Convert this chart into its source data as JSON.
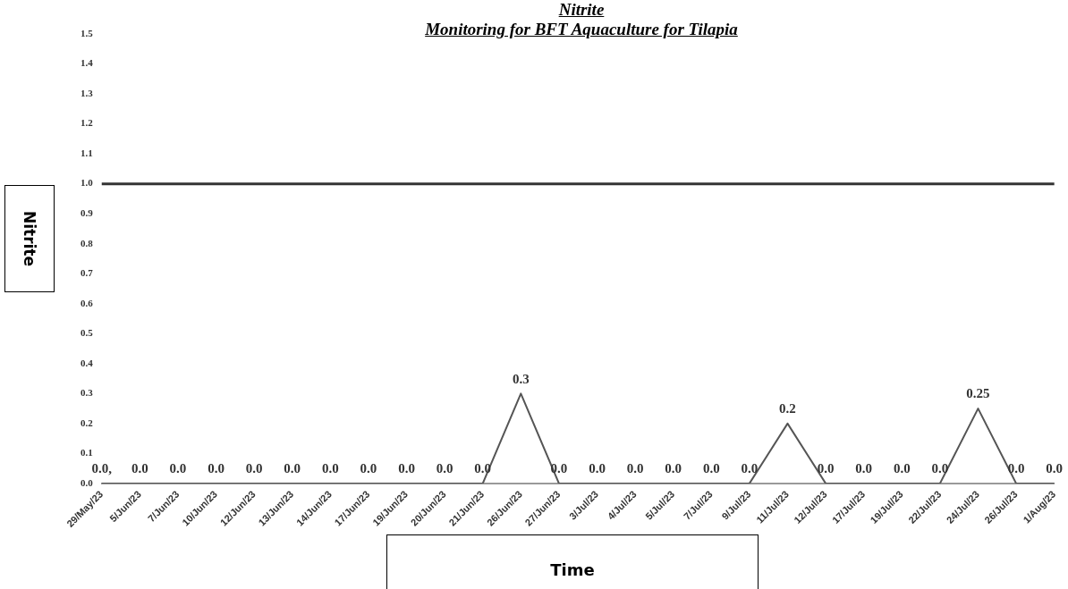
{
  "chart_data": {
    "type": "line",
    "title": "Nitrite",
    "subtitle": "Monitoring for BFT Aquaculture for Tilapia",
    "xlabel": "Time",
    "ylabel": "Nitrite",
    "categories": [
      "29/May/23",
      "5/Jun/23",
      "7/Jun/23",
      "10/Jun/23",
      "12/Jun/23",
      "13/Jun/23",
      "14/Jun/23",
      "17/Jun/23",
      "19/Jun/23",
      "20/Jun/23",
      "21/Jun/23",
      "26/Jun/23",
      "27/Jun/23",
      "3/Jul/23",
      "4/Jul/23",
      "5/Jul/23",
      "7/Jul/23",
      "9/Jul/23",
      "11/Jul/23",
      "12/Jul/23",
      "17/Jul/23",
      "19/Jul/23",
      "22/Jul/23",
      "24/Jul/23",
      "26/Jul/23",
      "1/Aug/23"
    ],
    "series": [
      {
        "color": "#555555",
        "values": [
          0,
          0,
          0,
          0,
          0,
          0,
          0,
          0,
          0,
          0,
          0,
          0.3,
          0,
          0,
          0,
          0,
          0,
          0,
          0.2,
          0,
          0,
          0,
          0,
          0.25,
          0,
          0
        ],
        "value_labels": [
          "0.0,",
          "0.0",
          "0.0",
          "0.0",
          "0.0",
          "0.0",
          "0.0",
          "0.0",
          "0.0",
          "0.0",
          "0.0",
          "0.3",
          "0.0",
          "0.0",
          "0.0",
          "0.0",
          "0.0",
          "0.0",
          "0.2",
          "0.0",
          "0.0",
          "0.0",
          "0.0",
          "0.25",
          "0.0",
          "0.0"
        ]
      }
    ],
    "ylim": [
      0,
      1.5
    ],
    "yticks": [
      {
        "value": 0,
        "label": "0.0"
      },
      {
        "value": 0.1,
        "label": "0.1"
      },
      {
        "value": 0.2,
        "label": "0.2"
      },
      {
        "value": 0.3,
        "label": "0.3"
      },
      {
        "value": 0.4,
        "label": "0.4"
      },
      {
        "value": 0.5,
        "label": "0.5"
      },
      {
        "value": 0.6,
        "label": "0.6"
      },
      {
        "value": 0.7,
        "label": "0.7"
      },
      {
        "value": 0.8,
        "label": "0.8"
      },
      {
        "value": 0.9,
        "label": "0.9"
      },
      {
        "value": 1,
        "label": "1.0"
      },
      {
        "value": 1.1,
        "label": "1.1"
      },
      {
        "value": 1.2,
        "label": "1.2"
      },
      {
        "value": 1.3,
        "label": "1.3"
      },
      {
        "value": 1.4,
        "label": "1.4"
      },
      {
        "value": 1.5,
        "label": "1.5"
      }
    ],
    "ref_lines": [
      {
        "axis": "y",
        "value": 1,
        "color": "#333333"
      }
    ],
    "grid": false,
    "legend": false,
    "marker": "none",
    "line_style": "solid"
  }
}
